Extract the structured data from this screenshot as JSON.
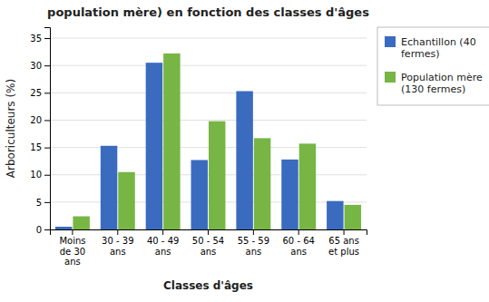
{
  "chart_data": {
    "type": "bar",
    "title": "population mère) en fonction des classes d'âges",
    "xlabel": "Classes d'âges",
    "ylabel": "Arboriculteurs (%)",
    "categories": [
      "Moins\nde 30\nans",
      "30 - 39\nans",
      "40 - 49\nans",
      "50 - 54\nans",
      "55 - 59\nans",
      "60 - 64\nans",
      "65 ans\net plus"
    ],
    "series": [
      {
        "name": "Echantillon (40\nfermes)",
        "color": "#3A6BBF",
        "values": [
          0.5,
          15.3,
          30.5,
          12.7,
          25.3,
          12.8,
          5.2
        ]
      },
      {
        "name": "Population mère\n(130 fermes)",
        "color": "#77B545",
        "values": [
          2.4,
          10.5,
          32.2,
          19.8,
          16.7,
          15.7,
          4.5
        ]
      }
    ],
    "ylim": [
      0,
      37
    ],
    "yticks": [
      0,
      5,
      10,
      15,
      20,
      25,
      30,
      35
    ],
    "grid": true,
    "legend": "right"
  }
}
